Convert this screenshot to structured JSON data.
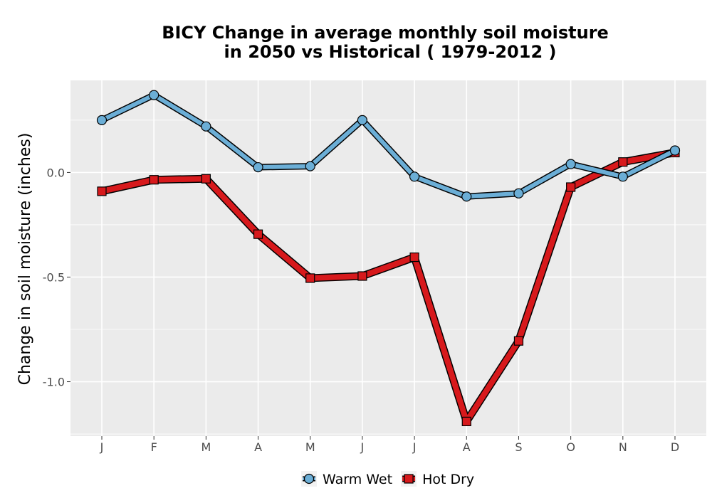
{
  "chart_data": {
    "type": "line",
    "title": "BICY  Change in average monthly soil moisture",
    "subtitle": "in 2050 vs Historical ( 1979-2012 )",
    "xlabel": "",
    "ylabel": "Change in soil moisture (inches)",
    "categories": [
      "J",
      "F",
      "M",
      "A",
      "M",
      "J",
      "J",
      "A",
      "S",
      "O",
      "N",
      "D"
    ],
    "ylim": [
      -1.26,
      0.44
    ],
    "yticks": [
      0.0,
      -0.5,
      -1.0
    ],
    "ytick_labels": [
      "0.0",
      "-0.5",
      "-1.0"
    ],
    "grid": true,
    "legend_position": "bottom",
    "series": [
      {
        "name": "Warm Wet",
        "color": "#6baed6",
        "marker": "circle",
        "values": [
          0.25,
          0.37,
          0.22,
          0.025,
          0.03,
          0.25,
          -0.02,
          -0.115,
          -0.1,
          0.04,
          -0.02,
          0.105
        ]
      },
      {
        "name": "Hot Dry",
        "color": "#d7191c",
        "marker": "square",
        "values": [
          -0.09,
          -0.035,
          -0.03,
          -0.295,
          -0.505,
          -0.495,
          -0.405,
          -1.19,
          -0.805,
          -0.07,
          0.05,
          0.095
        ]
      }
    ]
  }
}
